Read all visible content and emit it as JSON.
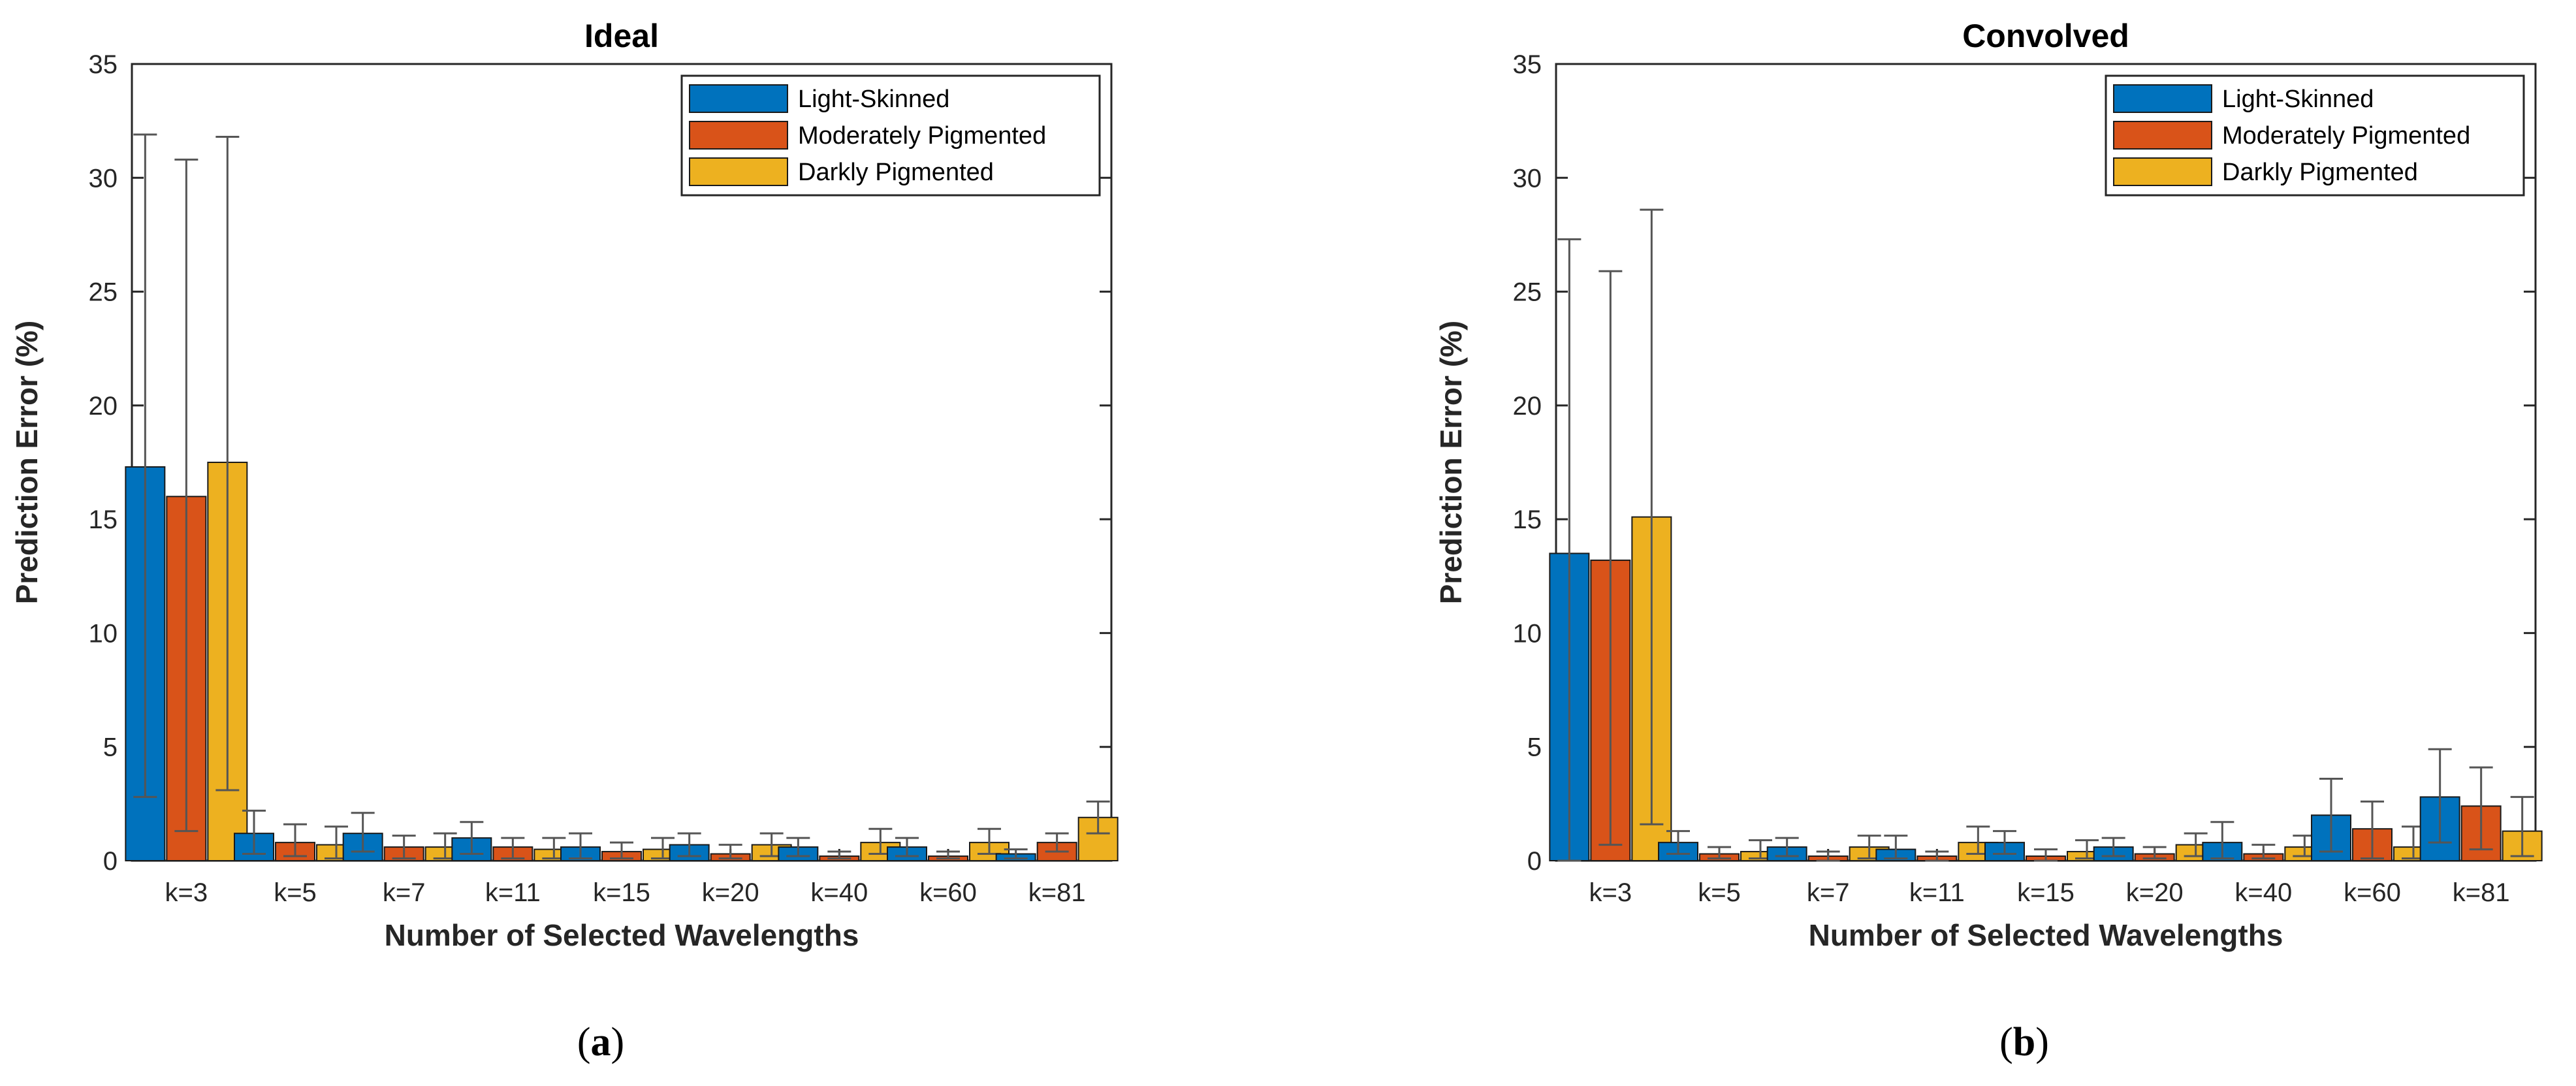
{
  "chart_data": [
    {
      "type": "bar",
      "panel_label": "a",
      "title": "Ideal",
      "xlabel": "Number of Selected Wavelengths",
      "ylabel": "Prediction Error (%)",
      "ylim": [
        0,
        35
      ],
      "yticks": [
        0,
        5,
        10,
        15,
        20,
        25,
        30,
        35
      ],
      "legend_position": "top-right",
      "categories": [
        "k=3",
        "k=5",
        "k=7",
        "k=11",
        "k=15",
        "k=20",
        "k=40",
        "k=60",
        "k=81"
      ],
      "series": [
        {
          "name": "Light-Skinned",
          "color": "#0072BD",
          "values": [
            17.3,
            1.2,
            1.2,
            1.0,
            0.6,
            0.7,
            0.6,
            0.6,
            0.3
          ],
          "lower": [
            2.8,
            0.3,
            0.4,
            0.3,
            0.1,
            0.2,
            0.2,
            0.2,
            0.1
          ],
          "upper": [
            31.9,
            2.2,
            2.1,
            1.7,
            1.2,
            1.2,
            1.0,
            1.0,
            0.5
          ]
        },
        {
          "name": "Moderately Pigmented",
          "color": "#D95319",
          "values": [
            16.0,
            0.8,
            0.6,
            0.6,
            0.4,
            0.3,
            0.2,
            0.2,
            0.8
          ],
          "lower": [
            1.3,
            0.2,
            0.1,
            0.1,
            0.1,
            0.1,
            0.1,
            0.1,
            0.4
          ],
          "upper": [
            30.8,
            1.6,
            1.1,
            1.0,
            0.8,
            0.7,
            0.4,
            0.4,
            1.2
          ]
        },
        {
          "name": "Darkly Pigmented",
          "color": "#EDB120",
          "values": [
            17.5,
            0.7,
            0.6,
            0.5,
            0.5,
            0.7,
            0.8,
            0.8,
            1.9
          ],
          "lower": [
            3.1,
            0.1,
            0.1,
            0.1,
            0.1,
            0.2,
            0.3,
            0.3,
            1.2
          ],
          "upper": [
            31.8,
            1.5,
            1.2,
            1.0,
            1.0,
            1.2,
            1.4,
            1.4,
            2.6
          ]
        }
      ]
    },
    {
      "type": "bar",
      "panel_label": "b",
      "title": "Convolved",
      "xlabel": "Number of Selected Wavelengths",
      "ylabel": "Prediction Error (%)",
      "ylim": [
        0,
        35
      ],
      "yticks": [
        0,
        5,
        10,
        15,
        20,
        25,
        30,
        35
      ],
      "legend_position": "top-right",
      "categories": [
        "k=3",
        "k=5",
        "k=7",
        "k=11",
        "k=15",
        "k=20",
        "k=40",
        "k=60",
        "k=81"
      ],
      "series": [
        {
          "name": "Light-Skinned",
          "color": "#0072BD",
          "values": [
            13.5,
            0.8,
            0.6,
            0.5,
            0.8,
            0.6,
            0.8,
            2.0,
            2.8
          ],
          "lower": [
            0.0,
            0.3,
            0.2,
            0.1,
            0.3,
            0.2,
            0.1,
            0.4,
            0.8
          ],
          "upper": [
            27.3,
            1.3,
            1.0,
            1.1,
            1.3,
            1.0,
            1.7,
            3.6,
            4.9
          ]
        },
        {
          "name": "Moderately Pigmented",
          "color": "#D95319",
          "values": [
            13.2,
            0.3,
            0.2,
            0.2,
            0.2,
            0.3,
            0.3,
            1.4,
            2.4
          ],
          "lower": [
            0.7,
            0.1,
            0.0,
            0.0,
            0.0,
            0.1,
            0.1,
            0.1,
            0.5
          ],
          "upper": [
            25.9,
            0.6,
            0.4,
            0.4,
            0.5,
            0.6,
            0.7,
            2.6,
            4.1
          ]
        },
        {
          "name": "Darkly Pigmented",
          "color": "#EDB120",
          "values": [
            15.1,
            0.4,
            0.6,
            0.8,
            0.4,
            0.7,
            0.6,
            0.6,
            1.3
          ],
          "lower": [
            1.6,
            0.1,
            0.1,
            0.3,
            0.1,
            0.2,
            0.2,
            0.1,
            0.2
          ],
          "upper": [
            28.6,
            0.9,
            1.1,
            1.5,
            0.9,
            1.2,
            1.1,
            1.5,
            2.8
          ]
        }
      ]
    }
  ]
}
